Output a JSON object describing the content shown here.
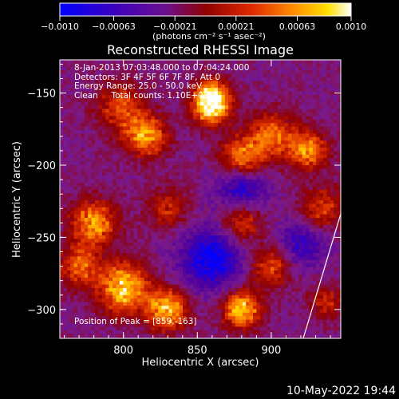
{
  "chart_data": {
    "type": "heatmap",
    "title": "Reconstructed RHESSI Image",
    "xlabel": "Heliocentric X (arcsec)",
    "ylabel": "Heliocentric Y (arcsec)",
    "xlim": [
      757,
      947
    ],
    "ylim": [
      -320,
      -127
    ],
    "x_ticks": [
      "800",
      "850",
      "900"
    ],
    "y_ticks": [
      "-150",
      "-200",
      "-250",
      "-300"
    ],
    "colorbar": {
      "range": [
        -0.001,
        0.001
      ],
      "tick_labels": [
        "-0.0010",
        "-0.00063",
        "-0.00021",
        "0.00021",
        "0.00063",
        "0.0010"
      ],
      "units_label": "(photons cm⁻² s⁻¹ asec⁻²)",
      "colors": [
        "#0000ff",
        "#4b00a0",
        "#7b1a8a",
        "#8f0000",
        "#d82a00",
        "#ff8800",
        "#ffd800",
        "#ffffff"
      ]
    },
    "annotations": {
      "time_range": "8-Jan-2013 07:03:48.000 to 07:04:24.000",
      "detectors": "Detectors: 3F 4F 5F 6F 7F 8F, Att 0",
      "energy": "Energy Range: 25.0 - 50.0 keV",
      "clean": "Clean     Total counts: 1.10E+03",
      "peak": "Position of Peak = [859,-163]"
    },
    "peak_position": [
      859,
      -163
    ],
    "limb_visible": true
  },
  "footer": {
    "date": "10-May-2022 19:44"
  }
}
